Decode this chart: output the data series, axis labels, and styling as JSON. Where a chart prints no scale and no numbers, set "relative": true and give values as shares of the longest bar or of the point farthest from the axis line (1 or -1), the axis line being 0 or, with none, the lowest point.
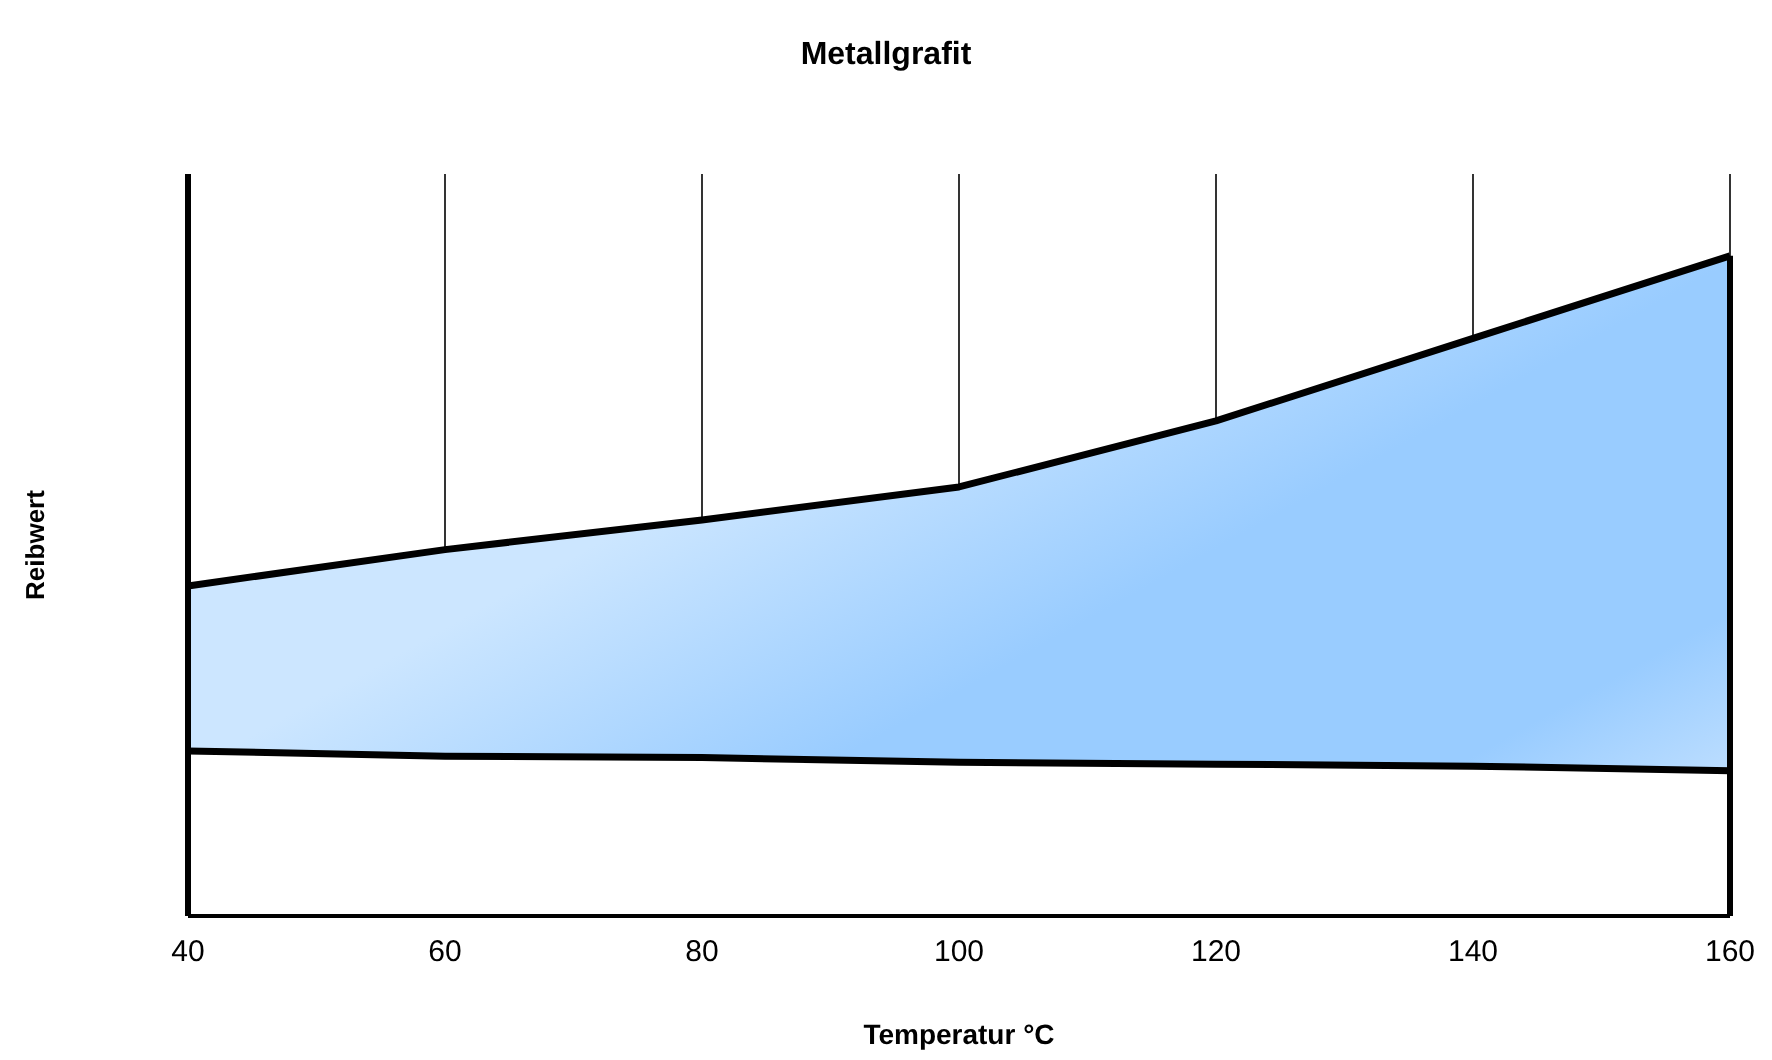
{
  "chart_data": {
    "type": "area",
    "title": "Metallgrafit",
    "xlabel": "Temperatur °C",
    "ylabel": "Reibwert",
    "relative": true,
    "grid": "x",
    "stacked": true,
    "x": [
      40,
      60,
      80,
      100,
      120,
      140,
      160
    ],
    "xlim": [
      40,
      160
    ],
    "xticks": [
      40,
      60,
      80,
      100,
      120,
      140,
      160
    ],
    "series": [
      {
        "color": "#ffffff",
        "values": [
          0.25,
          0.242,
          0.24,
          0.233,
          0.23,
          0.227,
          0.22
        ]
      },
      {
        "color": "#99ccff",
        "values": [
          0.25,
          0.313,
          0.36,
          0.417,
          0.52,
          0.648,
          0.78
        ]
      }
    ]
  }
}
